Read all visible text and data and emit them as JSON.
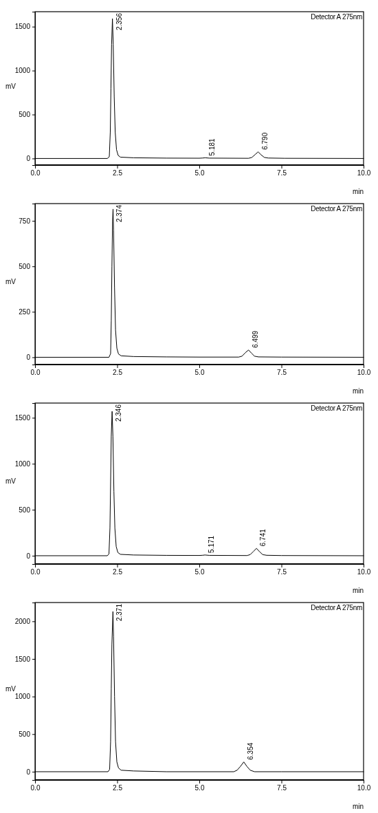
{
  "chart_data": [
    {
      "type": "line",
      "xlabel": "min",
      "ylabel": "mV",
      "xlim": [
        0,
        10
      ],
      "ylim": [
        -75,
        1670
      ],
      "xticks": [
        {
          "value": 0,
          "label": "0.0"
        },
        {
          "value": 2.5,
          "label": "2.5"
        },
        {
          "value": 5,
          "label": "5.0"
        },
        {
          "value": 7.5,
          "label": "7.5"
        },
        {
          "value": 10,
          "label": "10.0"
        }
      ],
      "yticks": [
        0,
        500,
        1000,
        1500
      ],
      "marker": "none",
      "line_style": "solid",
      "series": [
        {
          "color": "#000000",
          "x": [
            0,
            2.2,
            2.26,
            2.29,
            2.31,
            2.33,
            2.356,
            2.38,
            2.41,
            2.44,
            2.48,
            2.53,
            2.6,
            3,
            4,
            5,
            5.1,
            5.181,
            5.3,
            6.5,
            6.6,
            6.7,
            6.79,
            6.88,
            6.98,
            7.1,
            7.6,
            10
          ],
          "values": [
            0,
            0,
            20,
            300,
            800,
            1300,
            1590,
            1300,
            700,
            300,
            100,
            35,
            15,
            8,
            4,
            3,
            5,
            8,
            4,
            2,
            12,
            45,
            75,
            42,
            12,
            5,
            2,
            0
          ]
        }
      ],
      "annotations": [
        "Detector A 275nm",
        {
          "text": "2.356",
          "x": 2.356,
          "y": 1590
        },
        {
          "text": "5.181",
          "x": 5.181,
          "y": 8
        },
        {
          "text": "6.790",
          "x": 6.79,
          "y": 75
        }
      ]
    },
    {
      "type": "line",
      "xlabel": "min",
      "ylabel": "mV",
      "xlim": [
        0,
        10
      ],
      "ylim": [
        -40,
        845
      ],
      "xticks": [
        {
          "value": 0,
          "label": "0.0"
        },
        {
          "value": 2.5,
          "label": "2.5"
        },
        {
          "value": 5,
          "label": "5.0"
        },
        {
          "value": 7.5,
          "label": "7.5"
        },
        {
          "value": 10,
          "label": "10.0"
        }
      ],
      "yticks": [
        0,
        250,
        500,
        750
      ],
      "marker": "none",
      "line_style": "solid",
      "series": [
        {
          "color": "#000000",
          "x": [
            0,
            2.25,
            2.3,
            2.32,
            2.34,
            2.36,
            2.374,
            2.39,
            2.42,
            2.45,
            2.49,
            2.54,
            2.62,
            3,
            4,
            5,
            6.2,
            6.3,
            6.4,
            6.499,
            6.58,
            6.68,
            6.8,
            7.5,
            10
          ],
          "values": [
            0,
            0,
            20,
            200,
            500,
            750,
            815,
            700,
            380,
            150,
            50,
            18,
            8,
            4,
            2,
            1,
            1,
            6,
            25,
            40,
            24,
            6,
            2,
            1,
            0
          ]
        }
      ],
      "annotations": [
        "Detector A 275nm",
        {
          "text": "2.374",
          "x": 2.374,
          "y": 815
        },
        {
          "text": "6.499",
          "x": 6.499,
          "y": 40
        }
      ]
    },
    {
      "type": "line",
      "xlabel": "min",
      "ylabel": "mV",
      "xlim": [
        0,
        10
      ],
      "ylim": [
        -90,
        1660
      ],
      "xticks": [
        {
          "value": 0,
          "label": "0.0"
        },
        {
          "value": 2.5,
          "label": "2.5"
        },
        {
          "value": 5,
          "label": "5.0"
        },
        {
          "value": 7.5,
          "label": "7.5"
        },
        {
          "value": 10,
          "label": "10.0"
        }
      ],
      "yticks": [
        0,
        500,
        1000,
        1500
      ],
      "marker": "none",
      "line_style": "solid",
      "series": [
        {
          "color": "#000000",
          "x": [
            0,
            2.2,
            2.25,
            2.28,
            2.3,
            2.32,
            2.346,
            2.37,
            2.4,
            2.43,
            2.47,
            2.52,
            2.6,
            3,
            4,
            5,
            5.1,
            5.171,
            5.3,
            6.45,
            6.55,
            6.65,
            6.741,
            6.83,
            6.93,
            7.05,
            7.5,
            10
          ],
          "values": [
            0,
            0,
            20,
            300,
            800,
            1300,
            1570,
            1300,
            700,
            300,
            100,
            35,
            15,
            8,
            4,
            3,
            5,
            8,
            4,
            2,
            12,
            48,
            80,
            45,
            12,
            5,
            2,
            0
          ]
        }
      ],
      "annotations": [
        "Detector A 275nm",
        {
          "text": "2.346",
          "x": 2.346,
          "y": 1570
        },
        {
          "text": "5.171",
          "x": 5.171,
          "y": 8
        },
        {
          "text": "6.741",
          "x": 6.741,
          "y": 80
        }
      ]
    },
    {
      "type": "line",
      "xlabel": "min",
      "ylabel": "mV",
      "xlim": [
        0,
        10
      ],
      "ylim": [
        -110,
        2250
      ],
      "xticks": [
        {
          "value": 0,
          "label": "0.0"
        },
        {
          "value": 2.5,
          "label": "2.5"
        },
        {
          "value": 5,
          "label": "5.0"
        },
        {
          "value": 7.5,
          "label": "7.5"
        },
        {
          "value": 10,
          "label": "10.0"
        }
      ],
      "yticks": [
        0,
        500,
        1000,
        1500,
        2000
      ],
      "marker": "none",
      "line_style": "solid",
      "series": [
        {
          "color": "#000000",
          "x": [
            0,
            2.22,
            2.27,
            2.3,
            2.32,
            2.34,
            2.371,
            2.39,
            2.42,
            2.45,
            2.49,
            2.54,
            2.62,
            3,
            4,
            5,
            6.05,
            6.15,
            6.25,
            6.354,
            6.45,
            6.55,
            6.68,
            7.5,
            10
          ],
          "values": [
            0,
            0,
            30,
            400,
            1100,
            1700,
            2130,
            1800,
            1000,
            400,
            130,
            50,
            20,
            10,
            0,
            0,
            0,
            20,
            70,
            130,
            70,
            20,
            0,
            0,
            0
          ]
        }
      ],
      "annotations": [
        "Detector A 275nm",
        {
          "text": "2.371",
          "x": 2.371,
          "y": 2130
        },
        {
          "text": "6.354",
          "x": 6.354,
          "y": 130
        }
      ]
    }
  ]
}
